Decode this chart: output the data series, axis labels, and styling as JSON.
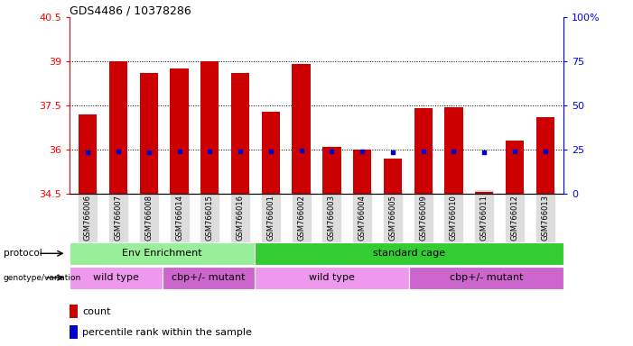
{
  "title": "GDS4486 / 10378286",
  "samples": [
    "GSM766006",
    "GSM766007",
    "GSM766008",
    "GSM766014",
    "GSM766015",
    "GSM766016",
    "GSM766001",
    "GSM766002",
    "GSM766003",
    "GSM766004",
    "GSM766005",
    "GSM766009",
    "GSM766010",
    "GSM766011",
    "GSM766012",
    "GSM766013"
  ],
  "bar_tops": [
    37.2,
    39.0,
    38.6,
    38.75,
    39.0,
    38.6,
    37.3,
    38.9,
    36.1,
    36.0,
    35.7,
    37.4,
    37.45,
    34.55,
    36.3,
    37.1
  ],
  "bar_bottoms": [
    34.5,
    34.5,
    34.5,
    34.5,
    34.5,
    34.5,
    34.5,
    34.5,
    34.5,
    34.5,
    34.5,
    34.5,
    34.5,
    34.5,
    34.5,
    34.5
  ],
  "blue_dots": [
    35.92,
    35.93,
    35.92,
    35.93,
    35.93,
    35.93,
    35.93,
    35.97,
    35.93,
    35.93,
    35.9,
    35.93,
    35.93,
    35.9,
    35.93,
    35.93
  ],
  "ylim": [
    34.5,
    40.5
  ],
  "yticks": [
    34.5,
    36.0,
    37.5,
    39.0,
    40.5
  ],
  "ytick_labels": [
    "34.5",
    "36",
    "37.5",
    "39",
    "40.5"
  ],
  "right_yticks": [
    0,
    25,
    50,
    75,
    100
  ],
  "right_ytick_labels": [
    "0",
    "25",
    "50",
    "75",
    "100%"
  ],
  "bar_color": "#cc0000",
  "dot_color": "#0000cc",
  "protocol_labels": [
    [
      "Env Enrichment",
      0,
      6
    ],
    [
      "standard cage",
      6,
      16
    ]
  ],
  "protocol_colors": [
    "#99ee99",
    "#33cc33"
  ],
  "genotype_groups": [
    [
      "wild type",
      0,
      3,
      "#ee99ee"
    ],
    [
      "cbp+/- mutant",
      3,
      6,
      "#cc66cc"
    ],
    [
      "wild type",
      6,
      11,
      "#ee99ee"
    ],
    [
      "cbp+/- mutant",
      11,
      16,
      "#cc66cc"
    ]
  ],
  "legend_count_color": "#cc0000",
  "legend_pct_color": "#0000cc",
  "xtick_bg": "#dddddd"
}
